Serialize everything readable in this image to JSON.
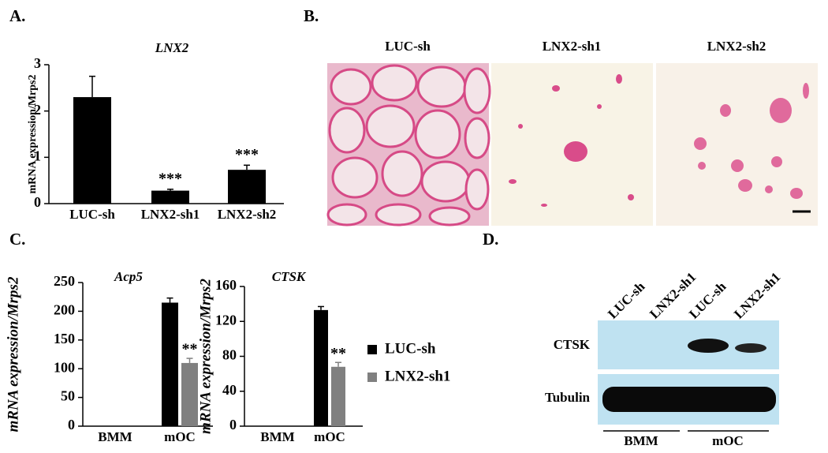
{
  "panel_labels": [
    "A.",
    "B.",
    "C.",
    "D."
  ],
  "chart_data": [
    {
      "type": "bar",
      "title": "LNX2",
      "y_label": "mRNA expression/Mrps2",
      "categories": [
        "LUC-sh",
        "LNX2-sh1",
        "LNX2-sh2"
      ],
      "values": [
        2.3,
        0.28,
        0.73
      ],
      "errors": [
        0.45,
        0.03,
        0.1
      ],
      "annotations": [
        null,
        "***",
        "***"
      ],
      "color": "#000000",
      "ylim": [
        0,
        3
      ],
      "yticks": [
        0,
        1,
        2,
        3
      ]
    },
    {
      "type": "grouped_bar",
      "title": "Acp5",
      "y_label": "mRNA expression/Mrps2",
      "categories": [
        "BMM",
        "mOC"
      ],
      "series": [
        {
          "name": "LUC-sh",
          "color": "#000000",
          "values": [
            0,
            215
          ],
          "errors": [
            0,
            8
          ]
        },
        {
          "name": "LNX2-sh1",
          "color": "#808080",
          "values": [
            0,
            110
          ],
          "errors": [
            0,
            8
          ]
        }
      ],
      "annotations": [
        null,
        "**"
      ],
      "ylim": [
        0,
        250
      ],
      "yticks": [
        0,
        50,
        100,
        150,
        200,
        250
      ]
    },
    {
      "type": "grouped_bar",
      "title": "CTSK",
      "y_label": "mRNA expression/Mrps2",
      "categories": [
        "BMM",
        "mOC"
      ],
      "series": [
        {
          "color": "#000000",
          "values": [
            0,
            133
          ],
          "errors": [
            0,
            4
          ]
        },
        {
          "color": "#808080",
          "values": [
            0,
            68
          ],
          "errors": [
            0,
            5
          ]
        }
      ],
      "annotations": [
        null,
        "**"
      ],
      "ylim": [
        0,
        160
      ],
      "yticks": [
        0,
        40,
        80,
        120,
        160
      ]
    }
  ],
  "micrographs": {
    "labels": [
      "LUC-sh",
      "LNX2-sh1",
      "LNX2-sh2"
    ]
  },
  "western_blot": {
    "lanes": [
      "LUC-sh",
      "LNX2-sh1",
      "LUC-sh",
      "LNX2-sh1"
    ],
    "rows": [
      "CTSK",
      "Tubulin"
    ],
    "groups": [
      "BMM",
      "mOC"
    ]
  }
}
